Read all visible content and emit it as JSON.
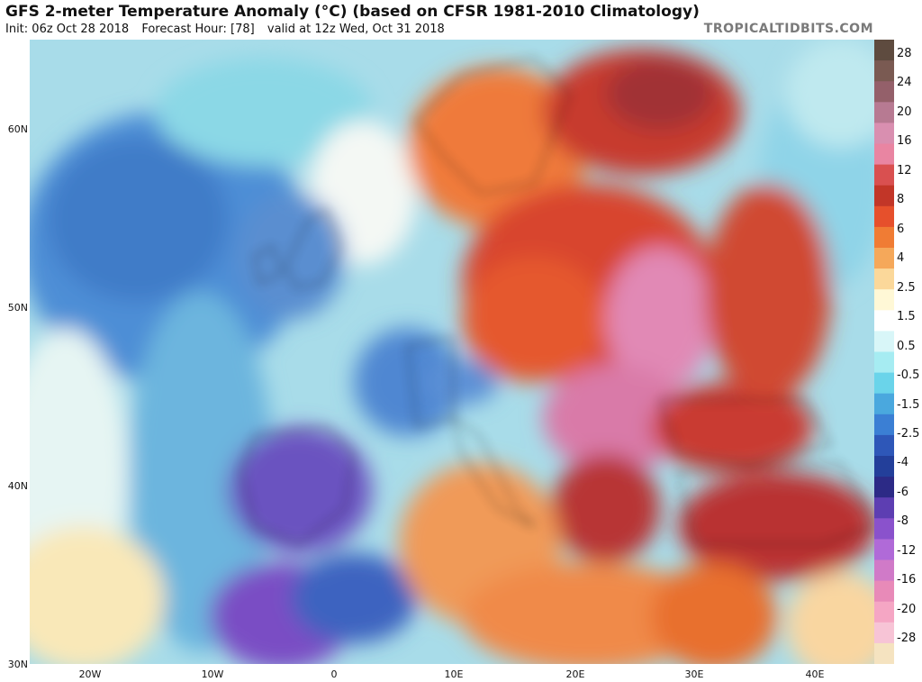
{
  "header": {
    "title": "GFS 2-meter Temperature Anomaly (°C) (based on CFSR 1981-2010 Climatology)",
    "init": "Init: 06z Oct 28 2018",
    "forecast_hour": "Forecast Hour: [78]",
    "valid": "valid at 12z Wed, Oct 31 2018",
    "brand": "TROPICALTIDBITS.COM"
  },
  "axes": {
    "lat_labels": [
      "60N",
      "50N",
      "40N",
      "30N"
    ],
    "lon_labels": [
      "20W",
      "10W",
      "0",
      "10E",
      "20E",
      "30E",
      "40E"
    ]
  },
  "colorbar": {
    "labels": [
      "28",
      "24",
      "20",
      "16",
      "12",
      "8",
      "6",
      "4",
      "2.5",
      "1.5",
      "0.5",
      "-0.5",
      "-1.5",
      "-2.5",
      "-4",
      "-6",
      "-8",
      "-12",
      "-16",
      "-20",
      "-28"
    ],
    "colors": [
      "#5e4b3f",
      "#7a5a52",
      "#94606a",
      "#b77a92",
      "#d98fb0",
      "#e985a2",
      "#d95050",
      "#c23628",
      "#e6502c",
      "#f07c34",
      "#f5a85a",
      "#fbd89a",
      "#fff8d6",
      "#ffffff",
      "#d8f6f8",
      "#a6ecf2",
      "#6ad4ea",
      "#4aa8de",
      "#3b7fd4",
      "#2e57b8",
      "#233f9a",
      "#2c2a86",
      "#5d3eb2",
      "#8a52cc",
      "#b06ad8",
      "#d07ac8",
      "#e88ab8",
      "#f5a6c4",
      "#f7c4d6",
      "#f5e3c0"
    ],
    "scheme": "temperature-anomaly"
  },
  "map": {
    "region": "Europe, North Africa, Middle East",
    "features": [
      "coastline",
      "country-borders",
      "admin-borders"
    ]
  }
}
